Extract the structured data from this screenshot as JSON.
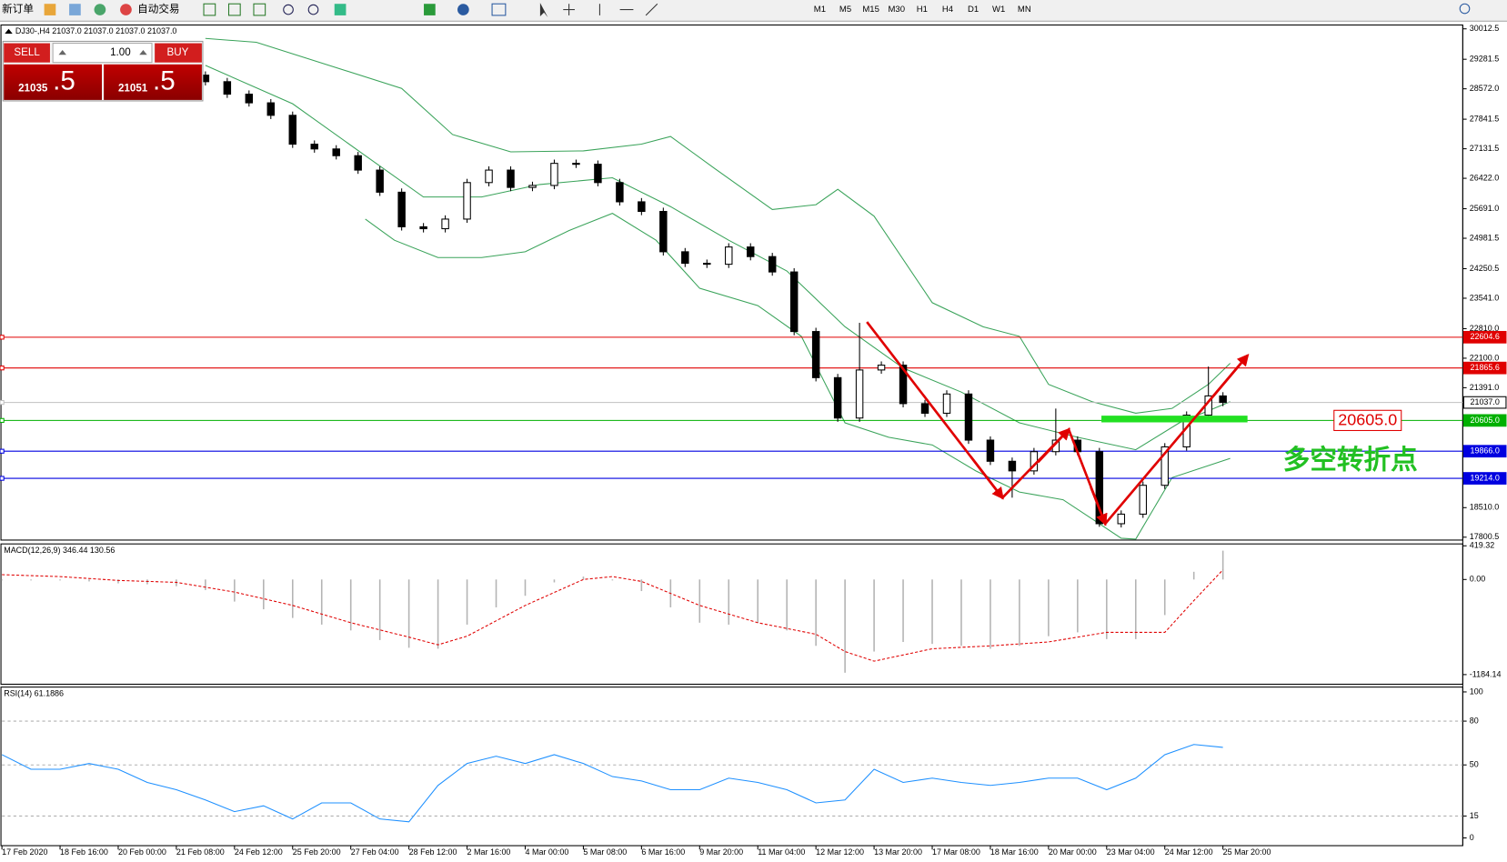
{
  "toolbar": {
    "new_order": "新订单",
    "auto_trade": "自动交易",
    "timeframes": [
      "M1",
      "M5",
      "M15",
      "M30",
      "H1",
      "H4",
      "D1",
      "W1",
      "MN"
    ]
  },
  "trade_panel": {
    "sell": "SELL",
    "buy": "BUY",
    "lots": "1.00",
    "sell_price": "21035",
    "sell_pips": ".5",
    "buy_price": "21051",
    "buy_pips": ".5"
  },
  "chart_data": [
    {
      "type": "candlestick",
      "title": "DJ30-,H4  21037.0 21037.0 21037.0 21037.0",
      "x": [
        28,
        31,
        34,
        37,
        40,
        43,
        46,
        49,
        52,
        55,
        58,
        61,
        64,
        67,
        70,
        73,
        76,
        79,
        82,
        85,
        88,
        91,
        94,
        97,
        100,
        103,
        106,
        109,
        112,
        115,
        118,
        121,
        124,
        127,
        130,
        133,
        136,
        139,
        142,
        145,
        148,
        151,
        154,
        157,
        160,
        163,
        166,
        168
      ],
      "open": [
        28900,
        28743,
        28443,
        28235,
        27935,
        27242,
        27127,
        26965,
        26619,
        26088,
        25257,
        25211,
        25442,
        26319,
        26619,
        26203,
        26250,
        26781,
        26760,
        26319,
        25857,
        25626,
        24657,
        24380,
        24357,
        24772,
        24541,
        24172,
        22741,
        21633,
        20663,
        21817,
        21933,
        21009,
        20778,
        21240,
        20132,
        19624,
        19393,
        19855,
        20132,
        19855,
        18124,
        18354,
        19047,
        19970,
        20732,
        21194
      ],
      "high": [
        28990,
        28833,
        28533,
        28325,
        28025,
        27332,
        27217,
        27055,
        26709,
        26178,
        25347,
        25532,
        26409,
        26709,
        26709,
        26340,
        26871,
        26871,
        26850,
        26409,
        25947,
        25716,
        24747,
        24470,
        24862,
        24862,
        24631,
        24262,
        22831,
        21723,
        22950,
        22023,
        22023,
        21099,
        21330,
        21330,
        20222,
        19714,
        19945,
        20890,
        20222,
        19945,
        18444,
        19137,
        20060,
        20822,
        21900,
        21284
      ],
      "low": [
        28653,
        28353,
        28145,
        27845,
        27152,
        27037,
        26875,
        26529,
        25998,
        25167,
        25121,
        25121,
        25352,
        26229,
        26113,
        26113,
        26160,
        26670,
        26229,
        25767,
        25536,
        24567,
        24290,
        24267,
        24267,
        24451,
        24082,
        22651,
        21543,
        20573,
        20573,
        21727,
        20919,
        20688,
        20688,
        20042,
        19534,
        18750,
        19303,
        19765,
        19765,
        18050,
        18034,
        18264,
        18957,
        19880,
        20642,
        20947
      ],
      "close": [
        28743,
        28443,
        28235,
        27935,
        27242,
        27127,
        26965,
        26619,
        26088,
        25257,
        25211,
        25442,
        26319,
        26619,
        26203,
        26250,
        26781,
        26760,
        26319,
        25857,
        25626,
        24657,
        24380,
        24357,
        24772,
        24541,
        24172,
        22741,
        21633,
        20663,
        21817,
        21933,
        21009,
        20778,
        21240,
        20132,
        19624,
        19393,
        19855,
        20132,
        19855,
        18124,
        18354,
        19047,
        19970,
        20732,
        21194,
        21037
      ],
      "up_color": "#ffffff",
      "down_color": "#000000",
      "overlays": [
        {
          "color": "#3aa35a",
          "x": [
            28,
            35,
            45,
            55,
            62,
            70,
            80,
            88,
            92,
            98,
            106,
            112,
            115,
            120,
            128,
            135,
            140,
            144,
            150,
            156,
            161,
            166,
            169
          ],
          "values": [
            29782,
            29689,
            29135,
            28581,
            27473,
            27058,
            27081,
            27242,
            27427,
            26665,
            25673,
            25788,
            26157,
            25511,
            23433,
            22856,
            22625,
            21471,
            21055,
            20779,
            20894,
            21471,
            21979
          ]
        },
        {
          "color": "#3aa35a",
          "x": [
            28,
            40,
            50,
            58,
            66,
            74,
            84,
            92,
            100,
            108,
            116,
            124,
            132,
            140,
            148,
            156,
            162,
            169
          ],
          "values": [
            29135,
            28212,
            26965,
            25973,
            25973,
            26273,
            26434,
            25742,
            24934,
            24195,
            22856,
            21863,
            21286,
            20548,
            20201,
            19901,
            20548,
            21055
          ]
        },
        {
          "color": "#3aa35a",
          "x": [
            50,
            54,
            60,
            66,
            72,
            78,
            84,
            90,
            96,
            104,
            110,
            116,
            122,
            128,
            134,
            140,
            146,
            150,
            154,
            156,
            161,
            169
          ],
          "values": [
            25442,
            24934,
            24518,
            24518,
            24657,
            25165,
            25580,
            24934,
            23779,
            23364,
            22625,
            20548,
            20201,
            20017,
            19393,
            18885,
            18701,
            18239,
            17774,
            17754,
            19231,
            19693
          ]
        }
      ],
      "hlines": [
        {
          "value": 22604.6,
          "label": "22604.6",
          "color": "#e00000",
          "text_color": "#ffffff"
        },
        {
          "value": 21865.6,
          "label": "21865.6",
          "color": "#e00000",
          "text_color": "#ffffff"
        },
        {
          "value": 21037,
          "label": "21037.0",
          "color": "#c0c0c0",
          "text_color": "#000000"
        },
        {
          "value": 20605,
          "label": "20605.0",
          "color": "#00b000",
          "text_color": "#ffffff"
        },
        {
          "value": 19866,
          "label": "19866.0",
          "color": "#0000e0",
          "text_color": "#ffffff"
        },
        {
          "value": 19214,
          "label": "19214.0",
          "color": "#0000e0",
          "text_color": "#ffffff"
        }
      ],
      "annotations": {
        "level_box": "20605.0",
        "turning_point": "多空转折点"
      },
      "xlim": [
        0,
        201
      ],
      "ylim": [
        17731,
        30105
      ],
      "yticks": [
        30012.5,
        29281.5,
        {
          "value": 28572,
          "label": "28572.0"
        },
        27841.5,
        27131.5,
        {
          "value": 26422,
          "label": "26422.0"
        },
        {
          "value": 25691,
          "label": "25691.0"
        },
        24981.5,
        24250.5,
        {
          "value": 23541,
          "label": "23541.0"
        },
        {
          "value": 22810,
          "label": "22810.0"
        },
        {
          "value": 22100,
          "label": "22100.0"
        },
        {
          "value": 21391,
          "label": "21391.0"
        },
        {
          "value": 18510,
          "label": "18510.0"
        },
        17800.5
      ]
    },
    {
      "type": "macd",
      "title": "MACD(12,26,9) 346.44 130.56",
      "histogram": {
        "color": "#b4b4b4",
        "x": [
          0,
          4,
          8,
          12,
          16,
          20,
          24,
          28,
          32,
          36,
          40,
          44,
          48,
          52,
          56,
          60,
          64,
          68,
          72,
          76,
          80,
          84,
          88,
          92,
          96,
          100,
          104,
          108,
          112,
          116,
          120,
          124,
          128,
          132,
          136,
          140,
          144,
          148,
          152,
          156,
          160,
          164,
          168
        ],
        "values": [
          -12,
          -12,
          -12,
          -24,
          -48,
          -60,
          -84,
          -132,
          -275,
          -371,
          -479,
          -562,
          -634,
          -754,
          -850,
          -862,
          -562,
          -347,
          -203,
          -36,
          36,
          -12,
          -144,
          -347,
          -538,
          -562,
          -538,
          -634,
          -826,
          -1161,
          -897,
          -778,
          -802,
          -826,
          -862,
          -826,
          -706,
          -658,
          -742,
          -742,
          -443,
          96,
          359
        ]
      },
      "signal": {
        "color": "#e00000",
        "x": [
          0,
          8,
          16,
          24,
          32,
          40,
          48,
          56,
          60,
          64,
          72,
          80,
          84,
          88,
          96,
          104,
          112,
          116,
          120,
          128,
          136,
          144,
          152,
          160,
          164,
          168
        ],
        "values": [
          60,
          36,
          -12,
          -36,
          -156,
          -323,
          -538,
          -718,
          -814,
          -706,
          -323,
          0,
          36,
          -24,
          -323,
          -538,
          -682,
          -897,
          -1017,
          -862,
          -826,
          -778,
          -658,
          -658,
          -263,
          120
        ]
      },
      "xlim": [
        0,
        201
      ],
      "ylim": [
        -1304,
        443
      ],
      "yticks": [
        419.32,
        {
          "value": 0,
          "label": "0.00"
        },
        -1184.14
      ]
    },
    {
      "type": "line",
      "title": "RSI(14) 61.1886",
      "color": "#1e90ff",
      "x": [
        0,
        4,
        8,
        12,
        16,
        20,
        24,
        28,
        32,
        36,
        40,
        44,
        48,
        52,
        56,
        60,
        64,
        68,
        72,
        76,
        80,
        84,
        88,
        92,
        96,
        100,
        104,
        108,
        112,
        116,
        120,
        124,
        128,
        132,
        136,
        140,
        144,
        148,
        152,
        156,
        160,
        164,
        168
      ],
      "values": [
        57,
        47,
        47,
        51,
        47,
        38,
        33,
        26,
        18,
        22,
        13,
        24,
        24,
        13,
        11,
        36,
        51,
        56,
        51,
        57,
        51,
        42,
        39,
        33,
        33,
        41,
        38,
        33,
        24,
        26,
        47,
        38,
        41,
        38,
        36,
        38,
        41,
        41,
        33,
        41,
        57,
        64,
        62
      ],
      "levels": [
        80,
        50,
        15
      ],
      "xlim": [
        0,
        201
      ],
      "ylim": [
        -5.3,
        103.3
      ],
      "yticks": [
        100,
        80,
        50,
        15,
        0
      ],
      "xticks": [
        {
          "value": 0,
          "label": "17 Feb 2020"
        },
        {
          "value": 8,
          "label": "18 Feb 16:00"
        },
        {
          "value": 16,
          "label": "20 Feb 00:00"
        },
        {
          "value": 24,
          "label": "21 Feb 08:00"
        },
        {
          "value": 32,
          "label": "24 Feb 12:00"
        },
        {
          "value": 40,
          "label": "25 Feb 20:00"
        },
        {
          "value": 48,
          "label": "27 Feb 04:00"
        },
        {
          "value": 56,
          "label": "28 Feb 12:00"
        },
        {
          "value": 64,
          "label": "2 Mar 16:00"
        },
        {
          "value": 72,
          "label": "4 Mar 00:00"
        },
        {
          "value": 80,
          "label": "5 Mar 08:00"
        },
        {
          "value": 88,
          "label": "6 Mar 16:00"
        },
        {
          "value": 96,
          "label": "9 Mar 20:00"
        },
        {
          "value": 104,
          "label": "11 Mar 04:00"
        },
        {
          "value": 112,
          "label": "12 Mar 12:00"
        },
        {
          "value": 120,
          "label": "13 Mar 20:00"
        },
        {
          "value": 128,
          "label": "17 Mar 08:00"
        },
        {
          "value": 136,
          "label": "18 Mar 16:00"
        },
        {
          "value": 144,
          "label": "20 Mar 00:00"
        },
        {
          "value": 152,
          "label": "23 Mar 04:00"
        },
        {
          "value": 160,
          "label": "24 Mar 12:00"
        },
        {
          "value": 168,
          "label": "25 Mar 20:00"
        }
      ]
    }
  ]
}
